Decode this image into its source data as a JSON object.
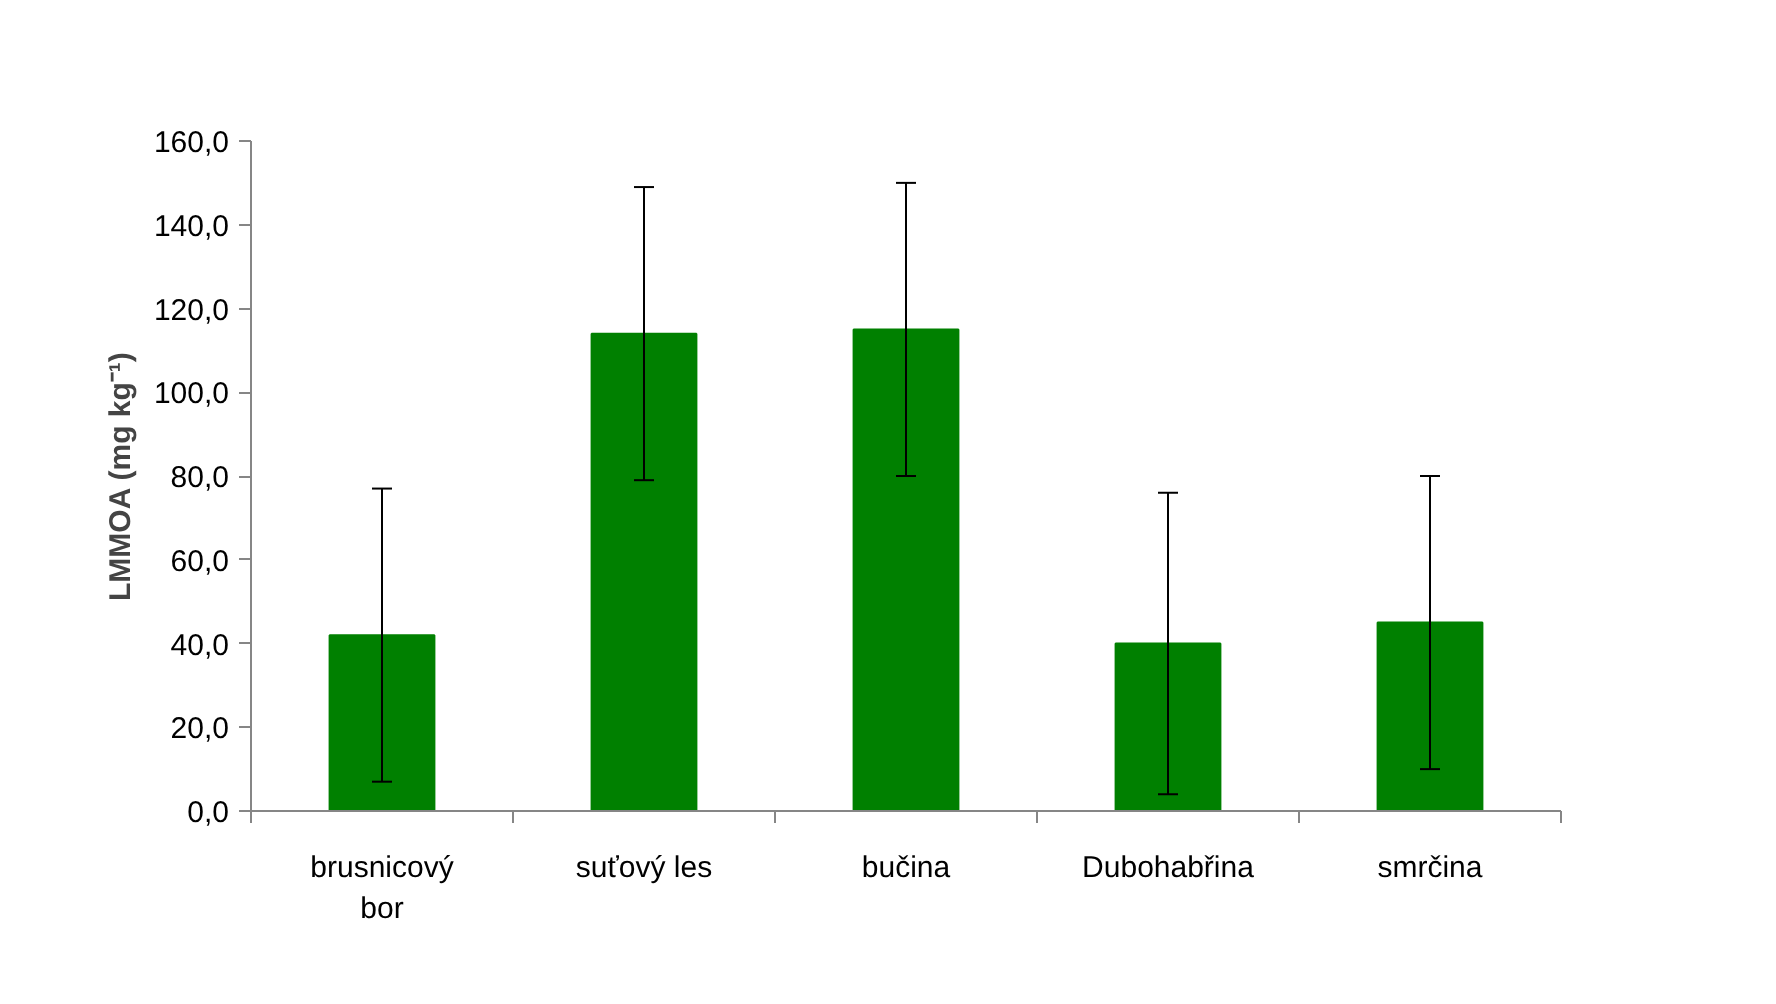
{
  "chart_data": {
    "type": "bar",
    "ylabel": "LMMOA (mg kg⁻¹)",
    "categories": [
      "brusnicový bor",
      "suťový les",
      "bučina",
      "Dubohabřina",
      "smrčina"
    ],
    "values": [
      42,
      114,
      115,
      40,
      45
    ],
    "errors": [
      35,
      35,
      35,
      36,
      35
    ],
    "color": "#008000",
    "ylim": [
      0,
      160
    ],
    "yticks": [
      {
        "value": 0,
        "label": "0,0"
      },
      {
        "value": 20,
        "label": "20,0"
      },
      {
        "value": 40,
        "label": "40,0"
      },
      {
        "value": 60,
        "label": "60,0"
      },
      {
        "value": 80,
        "label": "80,0"
      },
      {
        "value": 100,
        "label": "100,0"
      },
      {
        "value": 120,
        "label": "120,0"
      },
      {
        "value": 140,
        "label": "140,0"
      },
      {
        "value": 160,
        "label": "160,0"
      }
    ],
    "grid": false
  }
}
